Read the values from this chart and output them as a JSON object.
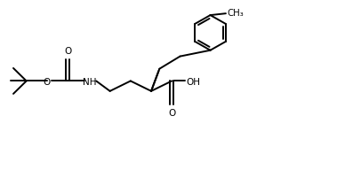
{
  "background_color": "#ffffff",
  "line_color": "#000000",
  "line_width": 1.4,
  "fig_width": 3.88,
  "fig_height": 1.92,
  "dpi": 100,
  "xlim": [
    0,
    10
  ],
  "ylim": [
    0,
    5
  ],
  "label_fontsize": 7.0
}
